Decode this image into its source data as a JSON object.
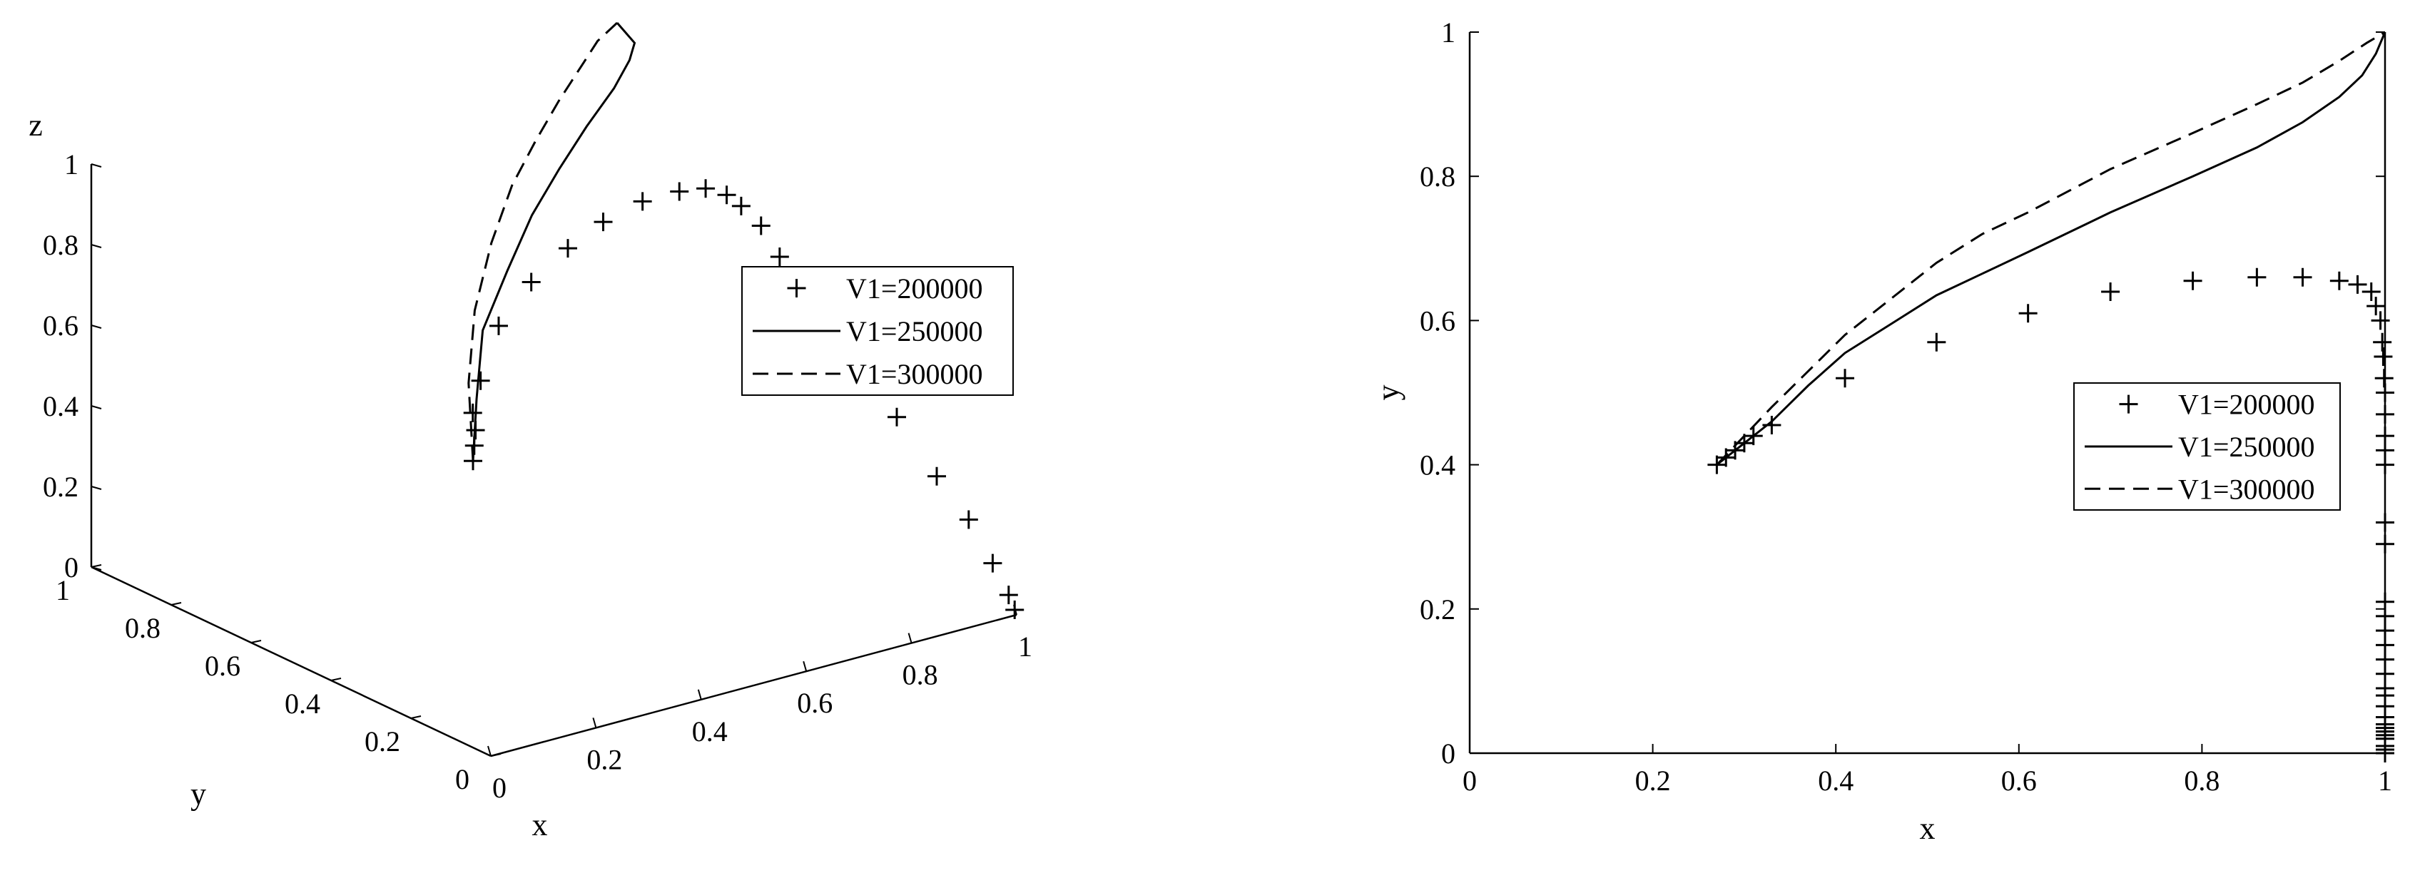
{
  "chart_data": [
    {
      "type": "line",
      "projection": "3d",
      "axes": {
        "x": {
          "label": "x",
          "range": [
            0,
            1
          ],
          "ticks": [
            "0",
            "0.2",
            "0.4",
            "0.6",
            "0.8",
            "1"
          ]
        },
        "y": {
          "label": "y",
          "range": [
            0,
            1
          ],
          "ticks": [
            "0",
            "0.2",
            "0.4",
            "0.6",
            "0.8",
            "1"
          ]
        },
        "z": {
          "label": "z",
          "range": [
            0,
            1
          ],
          "ticks": [
            "0",
            "0.2",
            "0.4",
            "0.6",
            "0.8",
            "1"
          ]
        }
      },
      "grid": false,
      "legend_position": "right",
      "series": [
        {
          "name": "V1=200000",
          "style": "markers-plus",
          "points": [
            [
              0.27,
              0.4,
              0.45
            ],
            [
              0.28,
              0.41,
              0.48
            ],
            [
              0.29,
              0.42,
              0.51
            ],
            [
              0.3,
              0.44,
              0.54
            ],
            [
              0.33,
              0.46,
              0.6
            ],
            [
              0.41,
              0.52,
              0.68
            ],
            [
              0.51,
              0.57,
              0.73
            ],
            [
              0.61,
              0.61,
              0.76
            ],
            [
              0.7,
              0.64,
              0.78
            ],
            [
              0.79,
              0.66,
              0.79
            ],
            [
              0.86,
              0.66,
              0.79
            ],
            [
              0.91,
              0.66,
              0.78
            ],
            [
              0.95,
              0.66,
              0.75
            ],
            [
              0.97,
              0.65,
              0.72
            ],
            [
              0.985,
              0.62,
              0.68
            ],
            [
              0.99,
              0.58,
              0.62
            ],
            [
              0.995,
              0.5,
              0.55
            ],
            [
              0.998,
              0.4,
              0.45
            ],
            [
              1.0,
              0.3,
              0.35
            ],
            [
              1.0,
              0.2,
              0.25
            ],
            [
              1.0,
              0.12,
              0.18
            ],
            [
              1.0,
              0.06,
              0.1
            ],
            [
              1.0,
              0.02,
              0.04
            ],
            [
              1.0,
              0.005,
              0.01
            ]
          ]
        },
        {
          "name": "V1=250000",
          "style": "solid",
          "points": [
            [
              0.27,
              0.4,
              0.45
            ],
            [
              0.33,
              0.47,
              0.55
            ],
            [
              0.41,
              0.56,
              0.65
            ],
            [
              0.51,
              0.63,
              0.73
            ],
            [
              0.61,
              0.7,
              0.8
            ],
            [
              0.7,
              0.75,
              0.86
            ],
            [
              0.79,
              0.8,
              0.91
            ],
            [
              0.88,
              0.85,
              0.95
            ],
            [
              0.94,
              0.89,
              0.98
            ],
            [
              0.98,
              0.93,
              0.99
            ],
            [
              1.0,
              1.0,
              1.0
            ]
          ]
        },
        {
          "name": "V1=300000",
          "style": "dashed",
          "points": [
            [
              0.27,
              0.4,
              0.45
            ],
            [
              0.33,
              0.49,
              0.58
            ],
            [
              0.41,
              0.58,
              0.69
            ],
            [
              0.51,
              0.67,
              0.78
            ],
            [
              0.61,
              0.75,
              0.85
            ],
            [
              0.7,
              0.81,
              0.9
            ],
            [
              0.79,
              0.87,
              0.94
            ],
            [
              0.88,
              0.93,
              0.97
            ],
            [
              0.94,
              0.97,
              0.99
            ],
            [
              1.0,
              1.0,
              1.0
            ]
          ]
        }
      ]
    },
    {
      "type": "line",
      "xlabel": "x",
      "ylabel": "y",
      "xlim": [
        0,
        1
      ],
      "ylim": [
        0,
        1
      ],
      "xticks": [
        "0",
        "0.2",
        "0.4",
        "0.6",
        "0.8",
        "1"
      ],
      "yticks": [
        "0",
        "0.2",
        "0.4",
        "0.6",
        "0.8",
        "1"
      ],
      "grid": false,
      "legend_position": "right",
      "series": [
        {
          "name": "V1=200000",
          "style": "markers-plus",
          "x": [
            0.27,
            0.28,
            0.29,
            0.3,
            0.31,
            0.33,
            0.41,
            0.51,
            0.61,
            0.7,
            0.79,
            0.86,
            0.91,
            0.95,
            0.97,
            0.985,
            0.99,
            0.995,
            0.997,
            0.998,
            0.999,
            1.0,
            1.0,
            1.0,
            1.0,
            1.0,
            1.0,
            1.0,
            1.0,
            1.0,
            1.0,
            1.0,
            1.0,
            1.0,
            1.0,
            1.0,
            1.0,
            1.0,
            1.0,
            1.0,
            1.0,
            1.0,
            1.0,
            1.0,
            1.0,
            1.0
          ],
          "y": [
            0.4,
            0.41,
            0.42,
            0.43,
            0.44,
            0.455,
            0.52,
            0.57,
            0.61,
            0.64,
            0.655,
            0.66,
            0.66,
            0.655,
            0.65,
            0.64,
            0.62,
            0.6,
            0.57,
            0.55,
            0.52,
            0.5,
            0.47,
            0.44,
            0.42,
            0.4,
            0.32,
            0.29,
            0.21,
            0.19,
            0.17,
            0.15,
            0.13,
            0.11,
            0.09,
            0.08,
            0.065,
            0.05,
            0.04,
            0.035,
            0.03,
            0.025,
            0.02,
            0.01,
            0.005,
            0.0
          ]
        },
        {
          "name": "V1=250000",
          "style": "solid",
          "x": [
            0.27,
            0.3,
            0.33,
            0.37,
            0.41,
            0.46,
            0.51,
            0.56,
            0.61,
            0.7,
            0.79,
            0.86,
            0.91,
            0.95,
            0.975,
            0.99,
            1.0
          ],
          "y": [
            0.4,
            0.43,
            0.46,
            0.51,
            0.555,
            0.595,
            0.635,
            0.665,
            0.695,
            0.75,
            0.8,
            0.84,
            0.875,
            0.91,
            0.94,
            0.97,
            1.0
          ]
        },
        {
          "name": "V1=300000",
          "style": "dashed",
          "x": [
            0.27,
            0.3,
            0.33,
            0.37,
            0.41,
            0.46,
            0.51,
            0.56,
            0.61,
            0.7,
            0.79,
            0.86,
            0.91,
            0.95,
            0.98,
            1.0
          ],
          "y": [
            0.4,
            0.44,
            0.48,
            0.53,
            0.58,
            0.63,
            0.68,
            0.72,
            0.75,
            0.81,
            0.86,
            0.9,
            0.93,
            0.96,
            0.985,
            1.0
          ]
        }
      ]
    }
  ]
}
